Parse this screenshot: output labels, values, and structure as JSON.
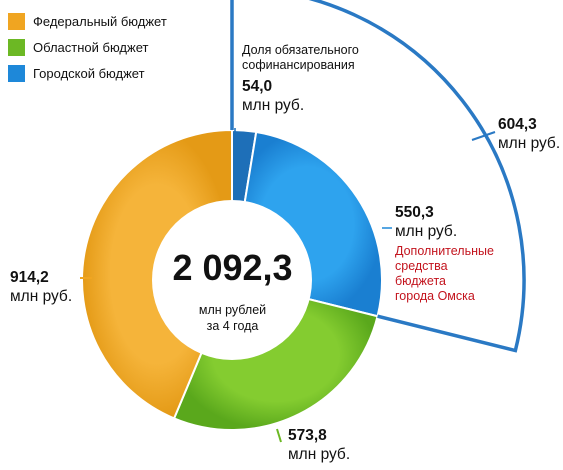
{
  "chart_data": {
    "type": "pie",
    "total": {
      "value": "2 092,3",
      "caption_line1": "млн рублей",
      "caption_line2": "за 4 года"
    },
    "legend": [
      {
        "name": "Федеральный бюджет",
        "color": "#f0a521"
      },
      {
        "name": "Областной бюджет",
        "color": "#6cb824"
      },
      {
        "name": "Городской бюджет",
        "color": "#1e88d9"
      }
    ],
    "slices": [
      {
        "key": "cofin",
        "series": "Городской бюджет",
        "value": 54.0,
        "value_label": "54,0",
        "unit": "млн руб.",
        "color": "#1e6fb8"
      },
      {
        "key": "additional",
        "series": "Городской бюджет",
        "value": 550.3,
        "value_label": "550,3",
        "unit": "млн руб.",
        "color": "#1e88d9"
      },
      {
        "key": "regional",
        "series": "Областной бюджет",
        "value": 573.8,
        "value_label": "573,8",
        "unit": "млн руб.",
        "color": "#6cb824"
      },
      {
        "key": "federal",
        "series": "Федеральный бюджет",
        "value": 914.2,
        "value_label": "914,2",
        "unit": "млн руб.",
        "color": "#f0a521"
      }
    ],
    "city_total": {
      "value": 604.3,
      "value_label": "604,3",
      "unit": "млн руб."
    },
    "annotations": {
      "cofin_line1": "Доля обязательного",
      "cofin_line2": "софинансирования",
      "additional_line1": "Дополнительные",
      "additional_line2": "средства",
      "additional_line3": "бюджета",
      "additional_line4": "города Омска"
    }
  }
}
